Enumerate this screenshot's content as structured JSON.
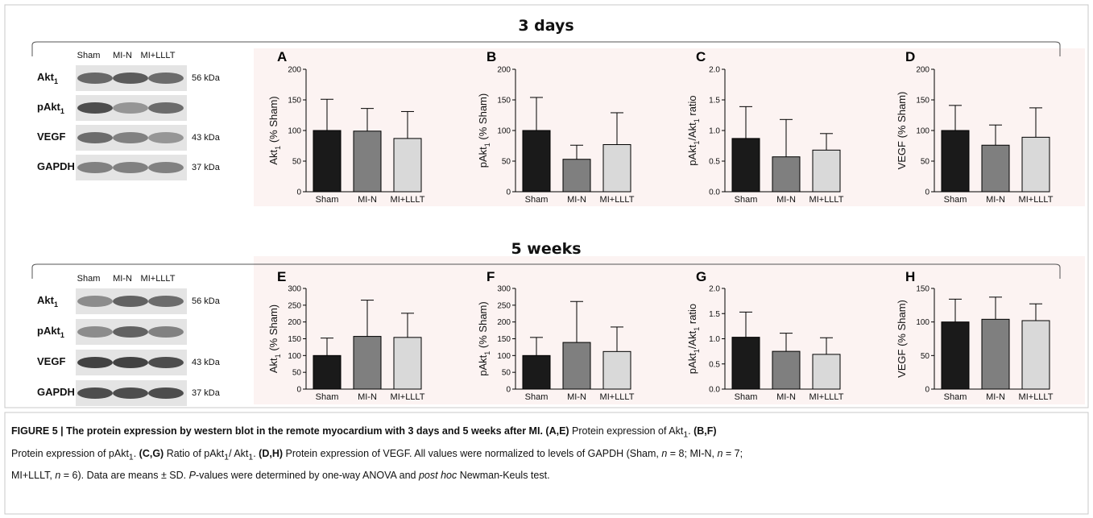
{
  "sections": [
    {
      "title": "3 days",
      "lanes": [
        "Sham",
        "MI-N",
        "MI+LLLT"
      ],
      "blots": [
        {
          "label_main": "Akt",
          "label_sub": "1",
          "kda": "56 kDa"
        },
        {
          "label_main": "pAkt",
          "label_sub": "1",
          "kda": ""
        },
        {
          "label_main": "VEGF",
          "label_sub": "",
          "kda": "43 kDa"
        },
        {
          "label_main": "GAPDH",
          "label_sub": "",
          "kda": "37 kDa"
        }
      ]
    },
    {
      "title": "5 weeks",
      "lanes": [
        "Sham",
        "MI-N",
        "MI+LLLT"
      ],
      "blots": [
        {
          "label_main": "Akt",
          "label_sub": "1",
          "kda": "56 kDa"
        },
        {
          "label_main": "pAkt",
          "label_sub": "1",
          "kda": ""
        },
        {
          "label_main": "VEGF",
          "label_sub": "",
          "kda": "43 kDa"
        },
        {
          "label_main": "GAPDH",
          "label_sub": "",
          "kda": "37 kDa"
        }
      ]
    }
  ],
  "chart_data": [
    {
      "type": "bar",
      "panel": "A",
      "categories": [
        "Sham",
        "MI-N",
        "MI+LLLT"
      ],
      "values": [
        100,
        99,
        87
      ],
      "errors": [
        51,
        37,
        44
      ],
      "ylabel_main": "Akt",
      "ylabel_sub": "1",
      "ylabel_rest": " (% Sham)",
      "ylim": [
        0,
        200
      ],
      "yticks": [
        "0",
        "50",
        "100",
        "150",
        "200"
      ],
      "colors": [
        "#1a1a1a",
        "#7f7f7f",
        "#d9d9d9"
      ]
    },
    {
      "type": "bar",
      "panel": "B",
      "categories": [
        "Sham",
        "MI-N",
        "MI+LLLT"
      ],
      "values": [
        100,
        53,
        77
      ],
      "errors": [
        54,
        23,
        52
      ],
      "ylabel_main": "pAkt",
      "ylabel_sub": "1",
      "ylabel_rest": " (% Sham)",
      "ylim": [
        0,
        200
      ],
      "yticks": [
        "0",
        "50",
        "100",
        "150",
        "200"
      ],
      "colors": [
        "#1a1a1a",
        "#7f7f7f",
        "#d9d9d9"
      ]
    },
    {
      "type": "bar",
      "panel": "C",
      "categories": [
        "Sham",
        "MI-N",
        "MI+LLLT"
      ],
      "values": [
        0.87,
        0.57,
        0.68
      ],
      "errors": [
        0.52,
        0.61,
        0.27
      ],
      "ylabel_main": "pAkt",
      "ylabel_sub": "1",
      "ylabel_rest": "/Akt",
      "ylabel_sub2": "1",
      "ylabel_tail": " ratio",
      "ylim": [
        0,
        2.0
      ],
      "yticks": [
        "0.0",
        "0.5",
        "1.0",
        "1.5",
        "2.0"
      ],
      "colors": [
        "#1a1a1a",
        "#7f7f7f",
        "#d9d9d9"
      ]
    },
    {
      "type": "bar",
      "panel": "D",
      "categories": [
        "Sham",
        "MI-N",
        "MI+LLLT"
      ],
      "values": [
        100,
        76,
        89
      ],
      "errors": [
        41,
        33,
        48
      ],
      "ylabel_main": "VEGF (% Sham)",
      "ylabel_sub": "",
      "ylabel_rest": "",
      "ylim": [
        0,
        200
      ],
      "yticks": [
        "0",
        "50",
        "100",
        "150",
        "200"
      ],
      "colors": [
        "#1a1a1a",
        "#7f7f7f",
        "#d9d9d9"
      ]
    },
    {
      "type": "bar",
      "panel": "E",
      "categories": [
        "Sham",
        "MI-N",
        "MI+LLLT"
      ],
      "values": [
        100,
        157,
        154
      ],
      "errors": [
        52,
        108,
        72
      ],
      "ylabel_main": "Akt",
      "ylabel_sub": "1",
      "ylabel_rest": " (% Sham)",
      "ylim": [
        0,
        300
      ],
      "yticks": [
        "0",
        "50",
        "100",
        "150",
        "200",
        "250",
        "300"
      ],
      "colors": [
        "#1a1a1a",
        "#7f7f7f",
        "#d9d9d9"
      ]
    },
    {
      "type": "bar",
      "panel": "F",
      "categories": [
        "Sham",
        "MI-N",
        "MI+LLLT"
      ],
      "values": [
        100,
        139,
        112
      ],
      "errors": [
        54,
        122,
        73
      ],
      "ylabel_main": "pAkt",
      "ylabel_sub": "1",
      "ylabel_rest": " (% Sham)",
      "ylim": [
        0,
        300
      ],
      "yticks": [
        "0",
        "50",
        "100",
        "150",
        "200",
        "250",
        "300"
      ],
      "colors": [
        "#1a1a1a",
        "#7f7f7f",
        "#d9d9d9"
      ]
    },
    {
      "type": "bar",
      "panel": "G",
      "categories": [
        "Sham",
        "MI-N",
        "MI+LLLT"
      ],
      "values": [
        1.03,
        0.75,
        0.69
      ],
      "errors": [
        0.5,
        0.36,
        0.33
      ],
      "ylabel_main": "pAkt",
      "ylabel_sub": "1",
      "ylabel_rest": "/Akt",
      "ylabel_sub2": "1",
      "ylabel_tail": " ratio",
      "ylim": [
        0,
        2.0
      ],
      "yticks": [
        "0.0",
        "0.5",
        "1.0",
        "1.5",
        "2.0"
      ],
      "colors": [
        "#1a1a1a",
        "#7f7f7f",
        "#d9d9d9"
      ]
    },
    {
      "type": "bar",
      "panel": "H",
      "categories": [
        "Sham",
        "MI-N",
        "MI+LLLT"
      ],
      "values": [
        100,
        104,
        102
      ],
      "errors": [
        34,
        33,
        25
      ],
      "ylabel_main": "VEGF (% Sham)",
      "ylabel_sub": "",
      "ylabel_rest": "",
      "ylim": [
        0,
        150
      ],
      "yticks": [
        "0",
        "50",
        "100",
        "150"
      ],
      "colors": [
        "#1a1a1a",
        "#7f7f7f",
        "#d9d9d9"
      ]
    }
  ],
  "caption": {
    "head": "FIGURE 5 | The protein expression by western blot in the remote myocardium with 3 days and 5 weeks after MI.",
    "l1_ae": "(A,E)",
    "l1_ae_text": " Protein expression of Akt",
    "l1_bf": "(B,F)",
    "l2_text": "Protein expression of pAkt",
    "l2_cg": "(C,G)",
    "l2_cg_text": " Ratio of pAkt",
    "l2_dh": "(D,H)",
    "l2_dh_text": " Protein expression of VEGF. All values were normalized to levels of GAPDH (Sham, ",
    "n": "n",
    "l2_rest": " = 8; MI-N, ",
    "l2_rest2": " = 7;",
    "l3_text": "MI+LLLT, ",
    "l3_rest": " = 6). Data are means ± SD. ",
    "l3_p": "P",
    "l3_rest2": "-values were determined by one-way ANOVA and ",
    "l3_posthoc": "post hoc",
    "l3_end": " Newman-Keuls test."
  }
}
